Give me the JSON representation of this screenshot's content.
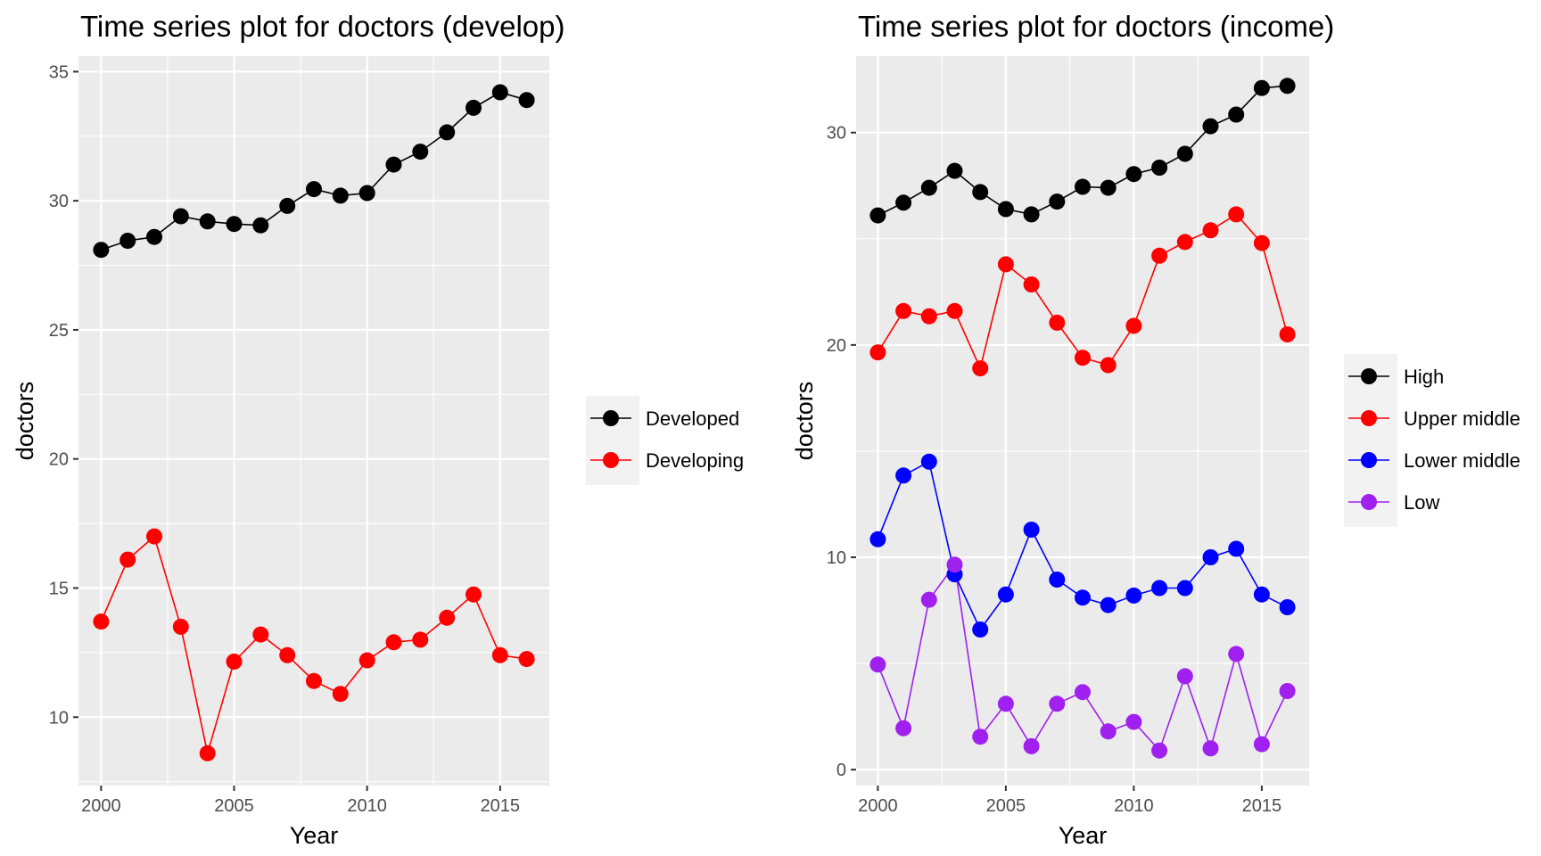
{
  "colors": {
    "panel_bg": "#EBEBEB",
    "grid": "#FFFFFF",
    "tick_text": "#4D4D4D",
    "tick_mark": "#333333",
    "legend_key_bg": "#F2F2F2"
  },
  "chart_data": [
    {
      "type": "line",
      "title": "Time series plot for doctors (develop)",
      "xlabel": "Year",
      "ylabel": "doctors",
      "x": [
        2000,
        2001,
        2002,
        2003,
        2004,
        2005,
        2006,
        2007,
        2008,
        2009,
        2010,
        2011,
        2012,
        2013,
        2014,
        2015,
        2016
      ],
      "xlim": [
        1999.15,
        2016.85
      ],
      "ylim": [
        7.35,
        35.6
      ],
      "x_ticks": [
        2000,
        2005,
        2010,
        2015
      ],
      "y_ticks": [
        10,
        15,
        20,
        25,
        30,
        35
      ],
      "grid": true,
      "legend_position": "right",
      "series": [
        {
          "name": "Developed",
          "color": "#000000",
          "values": [
            28.1,
            28.45,
            28.6,
            29.4,
            29.2,
            29.1,
            29.05,
            29.8,
            30.45,
            30.2,
            30.3,
            31.4,
            31.9,
            32.65,
            33.6,
            34.2,
            33.9
          ]
        },
        {
          "name": "Developing",
          "color": "#FF0000",
          "values": [
            13.7,
            16.1,
            17.0,
            13.5,
            8.6,
            12.15,
            13.2,
            12.4,
            11.4,
            10.9,
            12.2,
            12.9,
            13.0,
            13.85,
            14.75,
            12.4,
            12.25
          ]
        }
      ]
    },
    {
      "type": "line",
      "title": "Time series plot for doctors (income)",
      "xlabel": "Year",
      "ylabel": "doctors",
      "x": [
        2000,
        2001,
        2002,
        2003,
        2004,
        2005,
        2006,
        2007,
        2008,
        2009,
        2010,
        2011,
        2012,
        2013,
        2014,
        2015,
        2016
      ],
      "xlim": [
        1999.15,
        2016.85
      ],
      "ylim": [
        -0.75,
        33.6
      ],
      "x_ticks": [
        2000,
        2005,
        2010,
        2015
      ],
      "y_ticks": [
        0,
        10,
        20,
        30
      ],
      "grid": true,
      "legend_position": "right",
      "series": [
        {
          "name": "High",
          "color": "#000000",
          "values": [
            26.1,
            26.7,
            27.4,
            28.2,
            27.2,
            26.4,
            26.15,
            26.75,
            27.45,
            27.4,
            28.05,
            28.35,
            29.0,
            30.3,
            30.85,
            32.1,
            32.2
          ]
        },
        {
          "name": "Upper middle",
          "color": "#FF0000",
          "values": [
            19.65,
            21.6,
            21.35,
            21.6,
            18.9,
            23.8,
            22.85,
            21.05,
            19.4,
            19.05,
            20.9,
            24.2,
            24.85,
            25.4,
            26.15,
            24.8,
            20.5
          ]
        },
        {
          "name": "Lower middle",
          "color": "#0000FF",
          "values": [
            10.85,
            13.85,
            14.5,
            9.2,
            6.6,
            8.25,
            11.3,
            8.95,
            8.1,
            7.75,
            8.2,
            8.55,
            8.55,
            10.0,
            10.4,
            8.25,
            7.65
          ]
        },
        {
          "name": "Low",
          "color": "#A020F0",
          "values": [
            4.95,
            1.95,
            8.0,
            9.65,
            1.55,
            3.1,
            1.1,
            3.1,
            3.65,
            1.8,
            2.25,
            0.9,
            4.4,
            1.0,
            5.45,
            1.2,
            3.7
          ]
        }
      ]
    }
  ]
}
